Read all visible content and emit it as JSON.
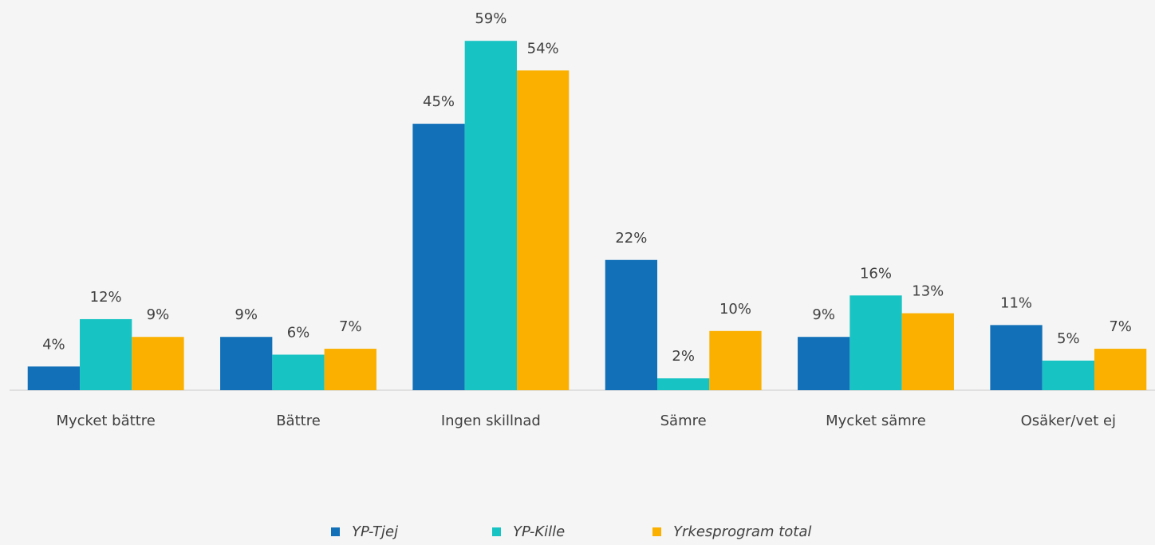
{
  "chart_data": {
    "type": "bar",
    "categories": [
      "Mycket bättre",
      "Bättre",
      "Ingen skillnad",
      "Sämre",
      "Mycket sämre",
      "Osäker/vet ej"
    ],
    "series": [
      {
        "name": "YP-Tjej",
        "color": "#1170b8",
        "values": [
          4,
          9,
          45,
          22,
          9,
          11
        ],
        "value_labels": [
          "4%",
          "9%",
          "45%",
          "22%",
          "9%",
          "11%"
        ]
      },
      {
        "name": "YP-Kille",
        "color": "#17c3c3",
        "values": [
          12,
          6,
          59,
          2,
          16,
          5
        ],
        "value_labels": [
          "12%",
          "6%",
          "59%",
          "2%",
          "16%",
          "5%"
        ]
      },
      {
        "name": "Yrkesprogram total",
        "color": "#fbb000",
        "values": [
          9,
          7,
          54,
          10,
          13,
          7
        ],
        "value_labels": [
          "9%",
          "7%",
          "54%",
          "10%",
          "13%",
          "7%"
        ]
      }
    ],
    "legend": "bottom"
  }
}
